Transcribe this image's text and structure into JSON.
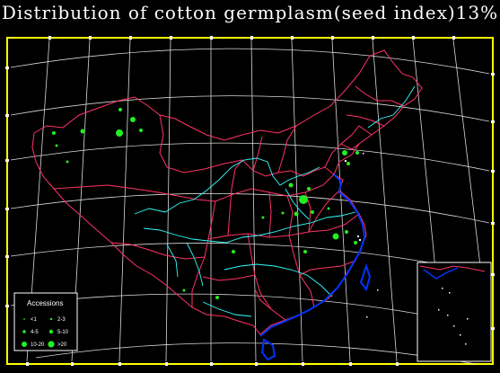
{
  "title": "Distribution  of cotton  germplasm(seed index)13%",
  "legend": {
    "title": "Accessions",
    "items": [
      {
        "label": "<1",
        "size": "tiny"
      },
      {
        "label": "2-3",
        "size": "small"
      },
      {
        "label": "4-5",
        "size": "small"
      },
      {
        "label": "5-10",
        "size": "medium"
      },
      {
        "label": "10-20",
        "size": "large"
      },
      {
        "label": ">20",
        "size": "large"
      }
    ]
  },
  "colors": {
    "background": "#000000",
    "frame": "#ffff00",
    "graticule": "#ffffff",
    "province_border": "#ff3366",
    "rivers": "#33ffff",
    "coast": "#0033ff",
    "points": "#22ee22"
  }
}
